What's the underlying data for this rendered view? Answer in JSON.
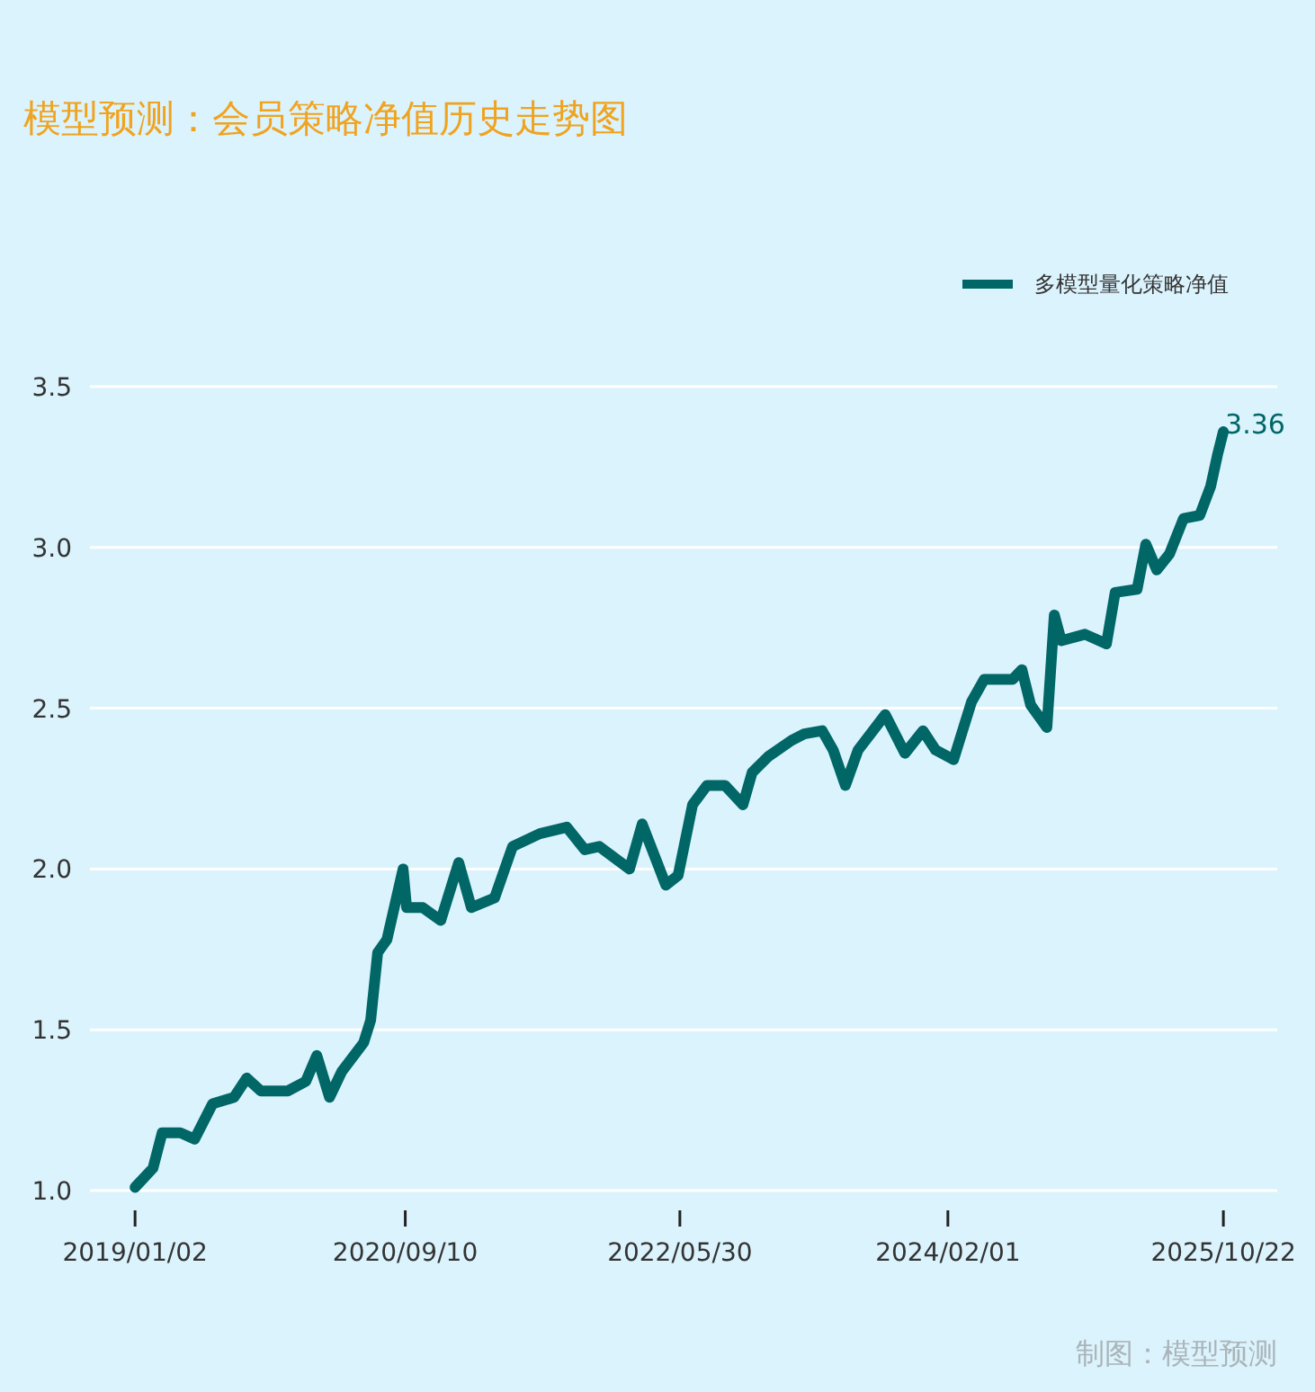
{
  "chart_data": {
    "type": "line",
    "title": "模型预测：会员策略净值历史走势图",
    "x": [
      "2019-01-02",
      "2019-02-12",
      "2019-03-05",
      "2019-04-15",
      "2019-05-18",
      "2019-06-28",
      "2019-08-16",
      "2019-09-14",
      "2019-10-16",
      "2019-12-17",
      "2020-01-27",
      "2020-02-21",
      "2020-03-21",
      "2020-04-18",
      "2020-06-07",
      "2020-06-23",
      "2020-07-09",
      "2020-07-30",
      "2020-09-05",
      "2020-09-13",
      "2020-10-20",
      "2020-11-30",
      "2021-01-10",
      "2021-02-08",
      "2021-04-02",
      "2021-05-13",
      "2021-07-14",
      "2021-09-14",
      "2021-10-25",
      "2021-11-27",
      "2022-02-04",
      "2022-03-05",
      "2022-04-28",
      "2022-05-26",
      "2022-06-28",
      "2022-07-31",
      "2022-09-10",
      "2022-10-21",
      "2022-11-11",
      "2022-12-18",
      "2023-02-09",
      "2023-03-10",
      "2023-04-20",
      "2023-05-15",
      "2023-06-12",
      "2023-07-11",
      "2023-09-11",
      "2023-10-26",
      "2023-12-06",
      "2024-01-04",
      "2024-02-14",
      "2024-03-26",
      "2024-04-24",
      "2024-06-04",
      "2024-06-28",
      "2024-07-19",
      "2024-08-08",
      "2024-09-14",
      "2024-10-01",
      "2024-10-17",
      "2024-12-10",
      "2025-01-28",
      "2025-02-17",
      "2025-04-08",
      "2025-04-28",
      "2025-05-23",
      "2025-06-21",
      "2025-07-23",
      "2025-08-29",
      "2025-09-23",
      "2025-10-09",
      "2025-10-22"
    ],
    "series": [
      {
        "name": "多模型量化策略净值",
        "color": "#006766",
        "values": [
          1.01,
          1.07,
          1.18,
          1.18,
          1.16,
          1.27,
          1.29,
          1.35,
          1.31,
          1.31,
          1.34,
          1.42,
          1.29,
          1.37,
          1.46,
          1.53,
          1.74,
          1.78,
          2.0,
          1.88,
          1.88,
          1.84,
          2.02,
          1.88,
          1.91,
          2.07,
          2.11,
          2.13,
          2.06,
          2.07,
          2.0,
          2.14,
          1.95,
          1.98,
          2.2,
          2.26,
          2.26,
          2.2,
          2.3,
          2.35,
          2.4,
          2.42,
          2.43,
          2.37,
          2.26,
          2.37,
          2.48,
          2.36,
          2.43,
          2.37,
          2.34,
          2.52,
          2.59,
          2.59,
          2.59,
          2.62,
          2.51,
          2.44,
          2.79,
          2.71,
          2.73,
          2.7,
          2.86,
          2.87,
          3.01,
          2.93,
          2.98,
          3.09,
          3.1,
          3.19,
          3.29,
          3.36
        ]
      }
    ],
    "xlim": [
      "2018-09-21",
      "2026-02-22"
    ],
    "xticks": [
      {
        "value": "2019-01-02",
        "label": "2019/01/02"
      },
      {
        "value": "2020-09-10",
        "label": "2020/09/10"
      },
      {
        "value": "2022-05-30",
        "label": "2022/05/30"
      },
      {
        "value": "2024-02-01",
        "label": "2024/02/01"
      },
      {
        "value": "2025-10-22",
        "label": "2025/10/22"
      }
    ],
    "ylim": [
      1,
      3.5
    ],
    "yticks": [
      {
        "value": 1,
        "label": "1.0"
      },
      {
        "value": 1.5,
        "label": "1.5"
      },
      {
        "value": 2,
        "label": "2.0"
      },
      {
        "value": 2.5,
        "label": "2.5"
      },
      {
        "value": 3,
        "label": "3.0"
      },
      {
        "value": 3.5,
        "label": "3.5"
      }
    ],
    "grid": "y",
    "legend": "top right",
    "marker": "none",
    "line_style": "solid",
    "annotations": [
      {
        "text": "3.36",
        "x": "2025-10-22",
        "y": 3.36
      },
      "制图：模型预测"
    ]
  }
}
